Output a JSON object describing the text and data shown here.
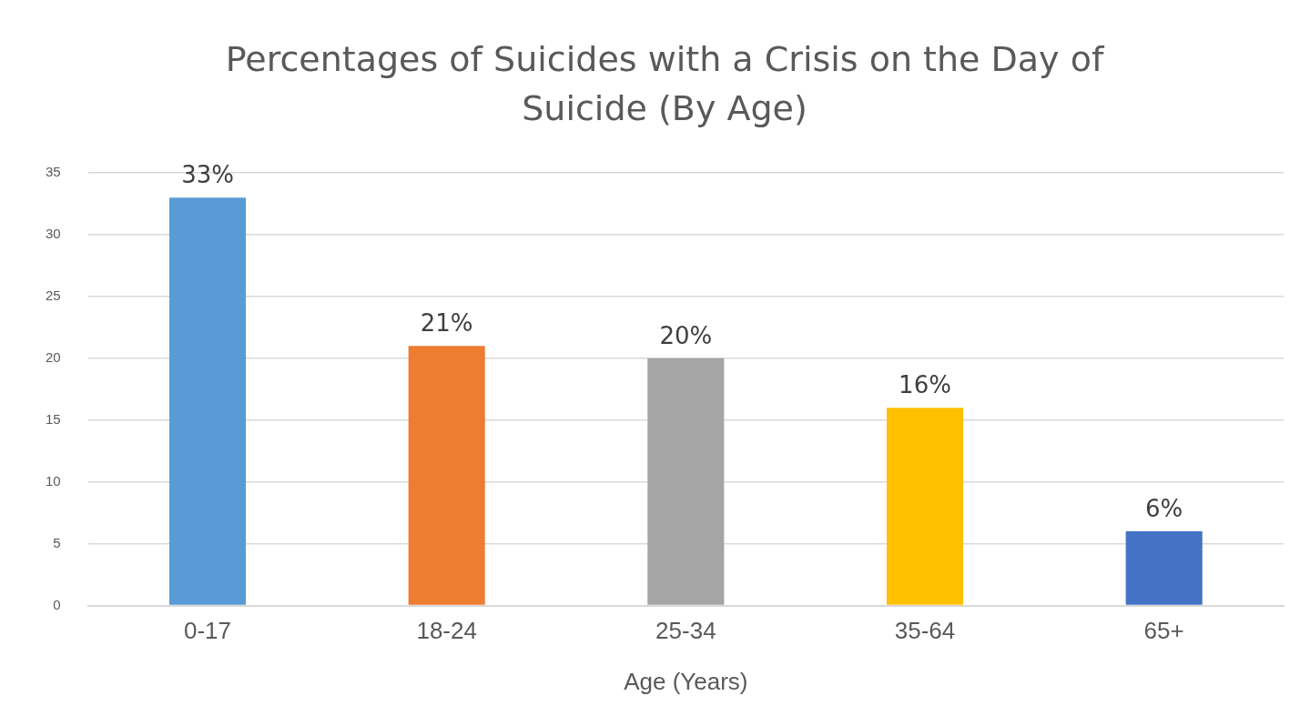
{
  "chart_data": {
    "type": "bar",
    "title": "Percentages of Suicides with a Crisis on the Day of Suicide (By Age)",
    "xlabel": "Age (Years)",
    "categories": [
      "0-17",
      "18-24",
      "25-34",
      "35-64",
      "65+"
    ],
    "values": [
      33,
      21,
      20,
      16,
      6
    ],
    "colors": [
      "#5b9bd5",
      "#ed7d31",
      "#a5a5a5",
      "#ffc000",
      "#4472c4"
    ],
    "value_labels": [
      "33%",
      "21%",
      "20%",
      "16%",
      "6%"
    ],
    "ylim": [
      0,
      35
    ],
    "yticks": [
      0,
      5,
      10,
      15,
      20,
      25,
      30,
      35
    ],
    "grid": "y",
    "legend": false
  }
}
